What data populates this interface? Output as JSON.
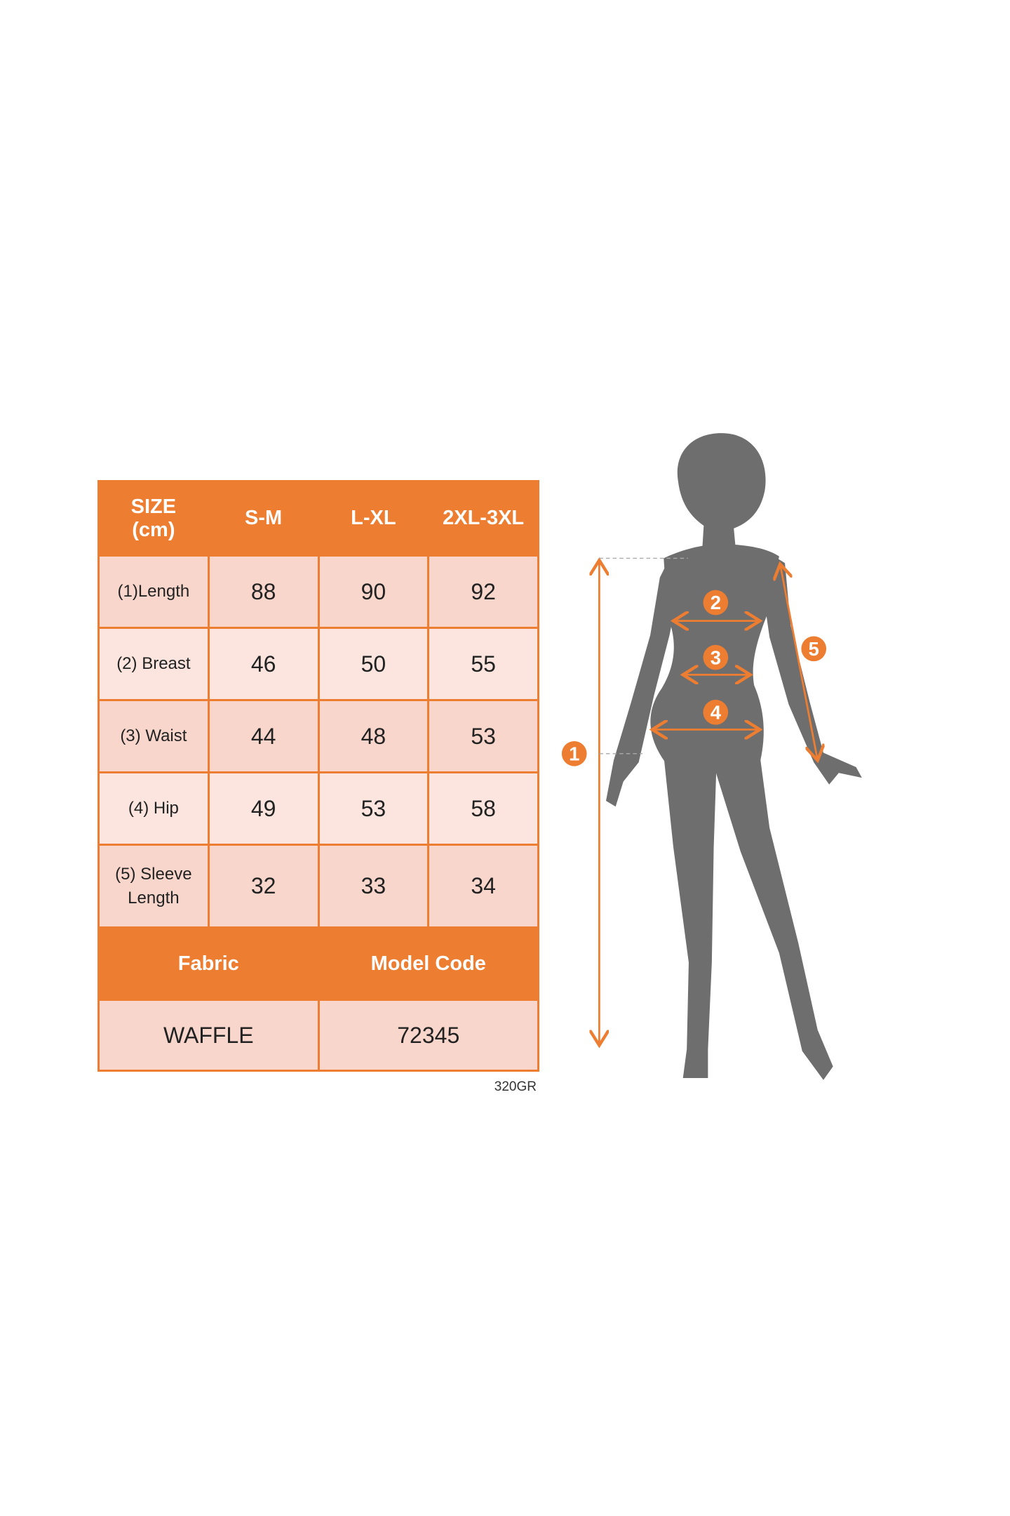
{
  "table": {
    "header": [
      "SIZE\n(cm)",
      "S-M",
      "L-XL",
      "2XL-3XL"
    ],
    "header_size_line1": "SIZE",
    "header_size_line2": "(cm)",
    "rows": [
      {
        "label": "(1)Length",
        "values": [
          "88",
          "90",
          "92"
        ]
      },
      {
        "label": "(2) Breast",
        "values": [
          "46",
          "50",
          "55"
        ]
      },
      {
        "label": "(3) Waist",
        "values": [
          "44",
          "48",
          "53"
        ]
      },
      {
        "label": "(4) Hip",
        "values": [
          "49",
          "53",
          "58"
        ]
      },
      {
        "label_line1": "(5) Sleeve",
        "label_line2": "Length",
        "values": [
          "32",
          "33",
          "34"
        ]
      }
    ],
    "fabric_label": "Fabric",
    "model_code_label": "Model Code",
    "fabric_value": "WAFFLE",
    "model_code_value": "72345"
  },
  "note": "320GR",
  "figure": {
    "badges": [
      "1",
      "2",
      "3",
      "4",
      "5"
    ]
  },
  "colors": {
    "accent": "#ed7d31",
    "cell_dark": "#f8d6cc",
    "cell_light": "#fbe5de",
    "silhouette": "#6e6e6e"
  }
}
